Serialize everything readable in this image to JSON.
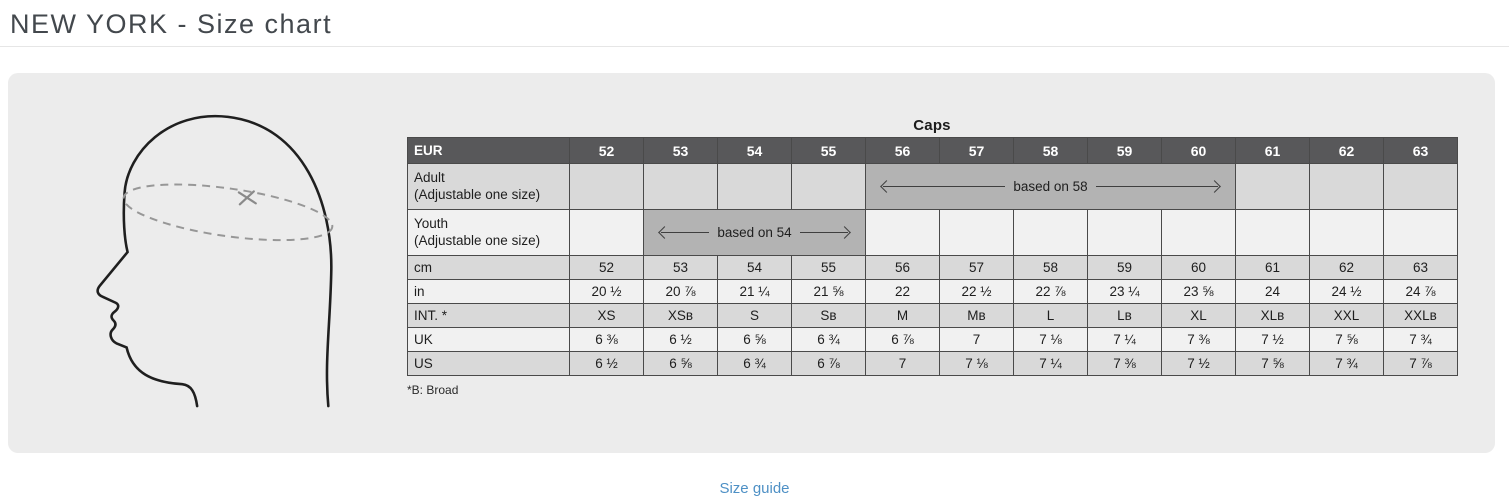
{
  "page": {
    "title": "NEW YORK - Size chart",
    "size_guide_link": "Size guide"
  },
  "figure": {
    "description": "head-profile-with-measurement-ellipse"
  },
  "table": {
    "title": "Caps",
    "header_label": "EUR",
    "sizes": [
      "52",
      "53",
      "54",
      "55",
      "56",
      "57",
      "58",
      "59",
      "60",
      "61",
      "62",
      "63"
    ],
    "adult": {
      "label": "Adult",
      "sublabel": "(Adjustable one size)",
      "span_start": "56",
      "span_end": "60",
      "span_text": "based on 58"
    },
    "youth": {
      "label": "Youth",
      "sublabel": "(Adjustable one size)",
      "span_start": "53",
      "span_end": "55",
      "span_text": "based on 54"
    },
    "rows": [
      {
        "label": "cm",
        "values": [
          "52",
          "53",
          "54",
          "55",
          "56",
          "57",
          "58",
          "59",
          "60",
          "61",
          "62",
          "63"
        ]
      },
      {
        "label": "in",
        "values": [
          "20 ½",
          "20 ⅞",
          "21 ¼",
          "21 ⅝",
          "22",
          "22 ½",
          "22 ⅞",
          "23 ¼",
          "23 ⅝",
          "24",
          "24 ½",
          "24 ⅞"
        ]
      },
      {
        "label": "INT. *",
        "values": [
          "XS",
          "XSʙ",
          "S",
          "Sʙ",
          "M",
          "Mʙ",
          "L",
          "Lʙ",
          "XL",
          "XLʙ",
          "XXL",
          "XXLʙ"
        ]
      },
      {
        "label": "UK",
        "values": [
          "6 ⅜",
          "6 ½",
          "6 ⅝",
          "6 ¾",
          "6 ⅞",
          "7",
          "7 ⅛",
          "7 ¼",
          "7 ⅜",
          "7 ½",
          "7 ⅝",
          "7 ¾"
        ]
      },
      {
        "label": "US",
        "values": [
          "6 ½",
          "6 ⅝",
          "6 ¾",
          "6 ⅞",
          "7",
          "7 ⅛",
          "7 ¼",
          "7 ⅜",
          "7 ½",
          "7 ⅝",
          "7 ¾",
          "7 ⅞"
        ]
      }
    ],
    "footnote": "*B: Broad"
  },
  "colors": {
    "panel_bg": "#ececec",
    "header_bg": "#58585a",
    "row_gray": "#d9d9d9",
    "row_light": "#f1f1f1",
    "merged_span_bg": "#b3b3b3",
    "border": "#4a4a4a",
    "link_blue": "#4e90c5",
    "title_text": "#43484d"
  }
}
